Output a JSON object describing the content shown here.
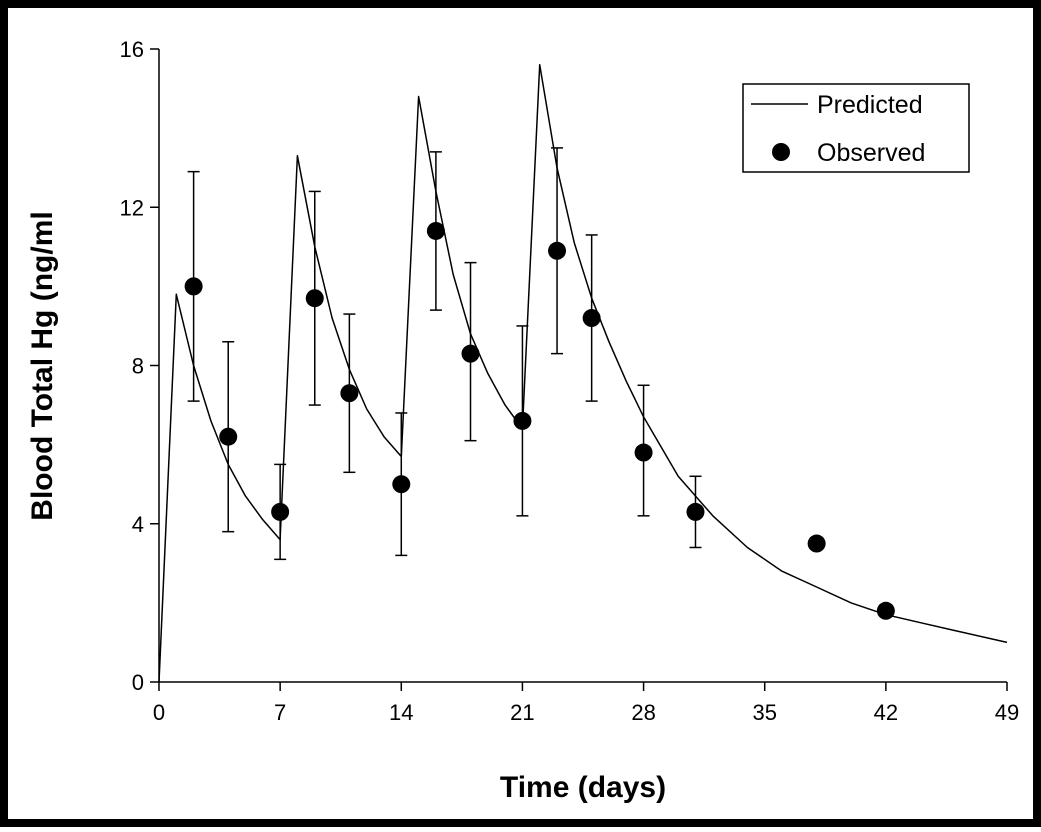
{
  "chart_data": {
    "type": "line",
    "title": "",
    "xlabel": "Time (days)",
    "ylabel": "Blood Total Hg (ng/ml",
    "xlim": [
      0,
      49
    ],
    "ylim": [
      0,
      16
    ],
    "xticks": [
      0,
      7,
      14,
      21,
      28,
      35,
      42,
      49
    ],
    "yticks": [
      0,
      4,
      8,
      12,
      16
    ],
    "grid": false,
    "legend_position": "top-right",
    "series": [
      {
        "name": "Predicted",
        "kind": "line",
        "color": "#000000",
        "x": [
          0,
          1,
          2,
          3,
          4,
          5,
          6,
          7,
          8,
          9,
          10,
          11,
          12,
          13,
          14,
          15,
          16,
          17,
          18,
          19,
          20,
          21,
          22,
          23,
          24,
          25,
          26,
          27,
          28,
          30,
          32,
          34,
          36,
          38,
          40,
          42,
          44,
          46,
          49
        ],
        "y": [
          0,
          9.8,
          8.0,
          6.6,
          5.5,
          4.7,
          4.1,
          3.6,
          13.3,
          11.0,
          9.2,
          7.9,
          6.9,
          6.2,
          5.7,
          14.8,
          12.4,
          10.3,
          8.8,
          7.8,
          7.0,
          6.4,
          15.6,
          13.0,
          11.1,
          9.7,
          8.6,
          7.6,
          6.7,
          5.2,
          4.2,
          3.4,
          2.8,
          2.4,
          2.0,
          1.7,
          1.5,
          1.3,
          1.0
        ]
      },
      {
        "name": "Observed",
        "kind": "scatter",
        "color": "#000000",
        "x": [
          2,
          4,
          7,
          9,
          11,
          14,
          16,
          18,
          21,
          23,
          25,
          28,
          31,
          38,
          42
        ],
        "y": [
          10.0,
          6.2,
          4.3,
          9.7,
          7.3,
          5.0,
          11.4,
          8.3,
          6.6,
          10.9,
          9.2,
          5.8,
          4.3,
          3.5,
          1.8
        ],
        "err_low": [
          7.1,
          3.8,
          3.1,
          7.0,
          5.3,
          3.2,
          9.4,
          6.1,
          4.2,
          8.3,
          7.1,
          4.2,
          3.4,
          null,
          null
        ],
        "err_high": [
          12.9,
          8.6,
          5.5,
          12.4,
          9.3,
          6.8,
          13.4,
          10.6,
          9.0,
          13.5,
          11.3,
          7.5,
          5.2,
          null,
          null
        ]
      }
    ]
  }
}
